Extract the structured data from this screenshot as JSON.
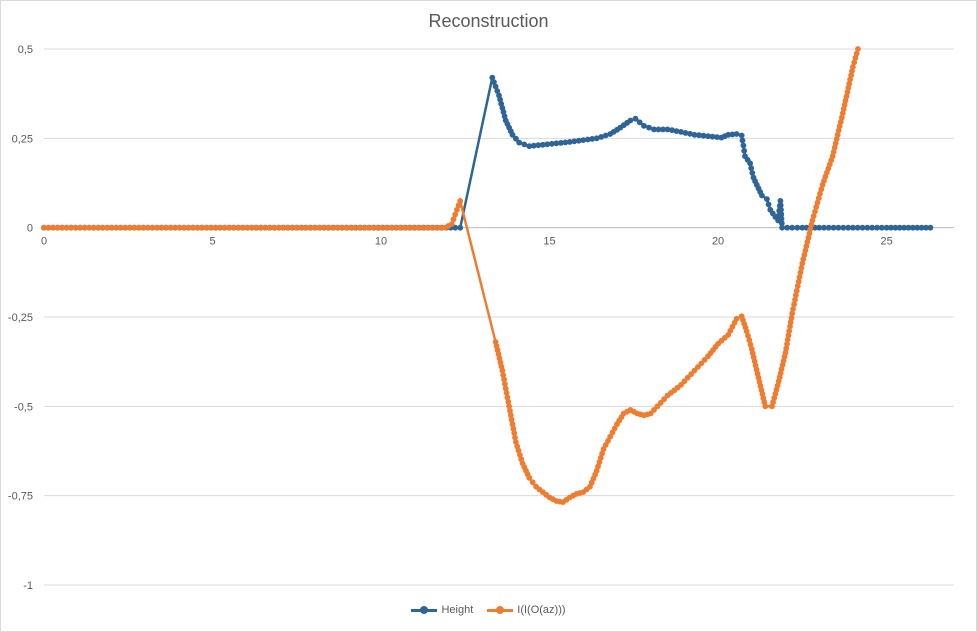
{
  "chart_data": {
    "type": "line",
    "title": "Reconstruction",
    "xlabel": "",
    "ylabel": "",
    "xlim": [
      0,
      27
    ],
    "ylim": [
      -1,
      0.5
    ],
    "x_ticks": [
      "0",
      "5",
      "10",
      "15",
      "20",
      "25"
    ],
    "x_tick_values": [
      0,
      5,
      10,
      15,
      20,
      25
    ],
    "y_ticks": [
      "0,5",
      "0,25",
      "0",
      "-0,25",
      "-0,5",
      "-0,75",
      "-1"
    ],
    "y_tick_values": [
      0.5,
      0.25,
      0,
      -0.25,
      -0.5,
      -0.75,
      -1
    ],
    "grid": "horizontal",
    "legend_position": "bottom",
    "series": [
      {
        "name": "Height",
        "color": "#2e6496",
        "points": [
          [
            0,
            0
          ],
          [
            12.2,
            0
          ],
          [
            12.35,
            0
          ],
          [
            13.3,
            0.42
          ],
          [
            13.5,
            0.37
          ],
          [
            13.7,
            0.3
          ],
          [
            13.9,
            0.26
          ],
          [
            14.1,
            0.238
          ],
          [
            14.4,
            0.228
          ],
          [
            14.8,
            0.232
          ],
          [
            15.2,
            0.236
          ],
          [
            15.6,
            0.24
          ],
          [
            16.0,
            0.245
          ],
          [
            16.4,
            0.25
          ],
          [
            16.8,
            0.262
          ],
          [
            17.1,
            0.28
          ],
          [
            17.4,
            0.3
          ],
          [
            17.55,
            0.305
          ],
          [
            17.8,
            0.285
          ],
          [
            18.1,
            0.275
          ],
          [
            18.5,
            0.275
          ],
          [
            18.9,
            0.268
          ],
          [
            19.3,
            0.26
          ],
          [
            19.7,
            0.256
          ],
          [
            20.1,
            0.252
          ],
          [
            20.3,
            0.26
          ],
          [
            20.55,
            0.262
          ],
          [
            20.7,
            0.258
          ],
          [
            20.75,
            0.23
          ],
          [
            20.8,
            0.2
          ],
          [
            20.95,
            0.18
          ],
          [
            21.05,
            0.14
          ],
          [
            21.15,
            0.12
          ],
          [
            21.3,
            0.09
          ],
          [
            21.45,
            0.08
          ],
          [
            21.55,
            0.05
          ],
          [
            21.7,
            0.03
          ],
          [
            21.78,
            0.02
          ],
          [
            21.85,
            0.075
          ],
          [
            21.9,
            0
          ],
          [
            22.5,
            0
          ],
          [
            23.0,
            0
          ],
          [
            24.0,
            0
          ],
          [
            25.0,
            0
          ],
          [
            26.3,
            0
          ]
        ]
      },
      {
        "name": "I(I(O(az)))",
        "color": "#ed7d31",
        "points": [
          [
            0,
            0
          ],
          [
            11.9,
            0
          ],
          [
            12.1,
            0.01
          ],
          [
            12.25,
            0.05
          ],
          [
            12.35,
            0.075
          ],
          [
            13.4,
            -0.32
          ],
          [
            13.6,
            -0.4
          ],
          [
            13.8,
            -0.5
          ],
          [
            14.0,
            -0.6
          ],
          [
            14.2,
            -0.66
          ],
          [
            14.4,
            -0.7
          ],
          [
            14.6,
            -0.725
          ],
          [
            14.8,
            -0.74
          ],
          [
            15.0,
            -0.755
          ],
          [
            15.2,
            -0.765
          ],
          [
            15.4,
            -0.768
          ],
          [
            15.6,
            -0.755
          ],
          [
            15.8,
            -0.745
          ],
          [
            16.0,
            -0.74
          ],
          [
            16.2,
            -0.725
          ],
          [
            16.4,
            -0.68
          ],
          [
            16.6,
            -0.62
          ],
          [
            16.8,
            -0.585
          ],
          [
            17.0,
            -0.55
          ],
          [
            17.2,
            -0.52
          ],
          [
            17.4,
            -0.51
          ],
          [
            17.6,
            -0.52
          ],
          [
            17.8,
            -0.525
          ],
          [
            18.0,
            -0.52
          ],
          [
            18.2,
            -0.5
          ],
          [
            18.5,
            -0.47
          ],
          [
            18.9,
            -0.44
          ],
          [
            19.3,
            -0.4
          ],
          [
            19.7,
            -0.36
          ],
          [
            20.0,
            -0.325
          ],
          [
            20.3,
            -0.3
          ],
          [
            20.55,
            -0.255
          ],
          [
            20.7,
            -0.248
          ],
          [
            20.85,
            -0.29
          ],
          [
            21.0,
            -0.34
          ],
          [
            21.2,
            -0.42
          ],
          [
            21.4,
            -0.5
          ],
          [
            21.6,
            -0.5
          ],
          [
            21.8,
            -0.43
          ],
          [
            22.0,
            -0.35
          ],
          [
            22.2,
            -0.24
          ],
          [
            22.5,
            -0.1
          ],
          [
            22.8,
            0.02
          ],
          [
            23.1,
            0.12
          ],
          [
            23.4,
            0.2
          ],
          [
            23.7,
            0.32
          ],
          [
            24.0,
            0.45
          ],
          [
            24.15,
            0.5
          ]
        ]
      }
    ]
  }
}
